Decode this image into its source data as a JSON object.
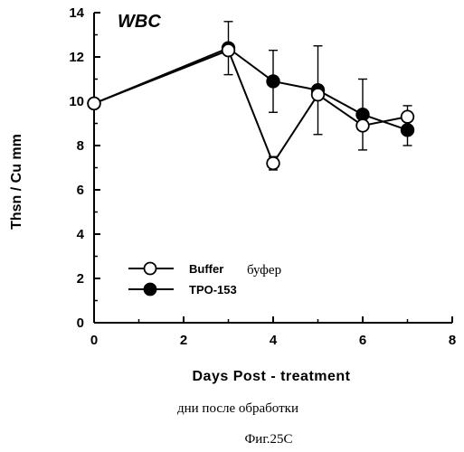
{
  "chart_data": {
    "type": "line",
    "title": "WBC",
    "xlabel": "Days Post - treatment",
    "xlabel_ru": "дни после обработки",
    "ylabel": "Thsn / Cu mm",
    "xlim": [
      0,
      8
    ],
    "ylim": [
      0,
      14
    ],
    "xticks": [
      "0",
      "2",
      "4",
      "6",
      "8"
    ],
    "yticks": [
      "0",
      "2",
      "4",
      "6",
      "8",
      "10",
      "12",
      "14"
    ],
    "grid": false,
    "legend_position": "bottom-left",
    "series": [
      {
        "name": "Buffer",
        "name_ru": "буфер",
        "marker": "open-circle",
        "x": [
          0,
          3,
          4,
          5,
          6,
          7
        ],
        "y": [
          9.9,
          12.3,
          7.2,
          10.3,
          8.9,
          9.3
        ],
        "err": [
          0,
          0,
          0.3,
          0,
          0,
          0.5
        ]
      },
      {
        "name": "TPO-153",
        "marker": "filled-circle",
        "x": [
          0,
          3,
          4,
          5,
          6,
          7
        ],
        "y": [
          9.9,
          12.4,
          10.9,
          10.5,
          9.4,
          8.7
        ],
        "err": [
          0,
          1.2,
          1.4,
          2.0,
          1.6,
          0.7
        ]
      }
    ]
  },
  "caption": "Фиг.25С"
}
